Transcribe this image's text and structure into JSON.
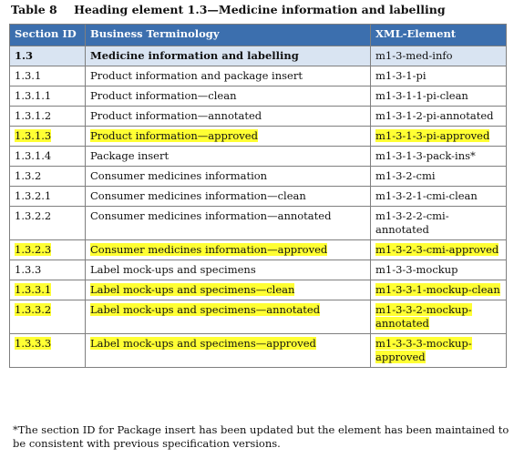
{
  "caption": {
    "number": "Table 8",
    "title": "Heading element 1.3—Medicine information and labelling"
  },
  "columns": [
    "Section ID",
    "Business Terminology",
    "XML-Element"
  ],
  "rows": [
    {
      "id": "1.3",
      "term": "Medicine information and labelling",
      "xml": "m1-3-med-info",
      "highlight": false,
      "section": true
    },
    {
      "id": "1.3.1",
      "term": "Product information and package insert",
      "xml": "m1-3-1-pi",
      "highlight": false,
      "section": false
    },
    {
      "id": "1.3.1.1",
      "term": "Product information—clean",
      "xml": "m1-3-1-1-pi-clean",
      "highlight": false,
      "section": false
    },
    {
      "id": "1.3.1.2",
      "term": "Product information—annotated",
      "xml": "m1-3-1-2-pi-annotated",
      "highlight": false,
      "section": false
    },
    {
      "id": "1.3.1.3",
      "term": "Product information—approved",
      "xml": "m1-3-1-3-pi-approved",
      "highlight": true,
      "section": false
    },
    {
      "id": "1.3.1.4",
      "term": "Package insert",
      "xml": "m1-3-1-3-pack-ins*",
      "highlight": false,
      "section": false
    },
    {
      "id": "1.3.2",
      "term": "Consumer medicines information",
      "xml": "m1-3-2-cmi",
      "highlight": false,
      "section": false
    },
    {
      "id": "1.3.2.1",
      "term": "Consumer medicines information—clean",
      "xml": "m1-3-2-1-cmi-clean",
      "highlight": false,
      "section": false
    },
    {
      "id": "1.3.2.2",
      "term": "Consumer medicines information—annotated",
      "xml": "m1-3-2-2-cmi-annotated",
      "highlight": false,
      "section": false
    },
    {
      "id": "1.3.2.3",
      "term": "Consumer medicines information—approved",
      "xml": "m1-3-2-3-cmi-approved",
      "highlight": true,
      "section": false
    },
    {
      "id": "1.3.3",
      "term": "Label mock-ups and specimens",
      "xml": "m1-3-3-mockup",
      "highlight": false,
      "section": false
    },
    {
      "id": "1.3.3.1",
      "term": "Label mock-ups and specimens—clean",
      "xml": "m1-3-3-1-mockup-clean",
      "highlight": true,
      "section": false
    },
    {
      "id": "1.3.3.2",
      "term": "Label mock-ups and specimens—annotated",
      "xml": "m1-3-3-2-mockup-annotated",
      "highlight": true,
      "section": false
    },
    {
      "id": "1.3.3.3",
      "term": "Label mock-ups and specimens—approved",
      "xml": "m1-3-3-3-mockup-approved",
      "highlight": true,
      "section": false
    }
  ],
  "footnote": "*The section ID for Package insert has been updated but the element has been maintained to be consistent with previous specification versions.",
  "colors": {
    "header_bg": "#3c6fae",
    "section_row_bg": "#d9e4f2",
    "highlight": "#ffff33"
  }
}
